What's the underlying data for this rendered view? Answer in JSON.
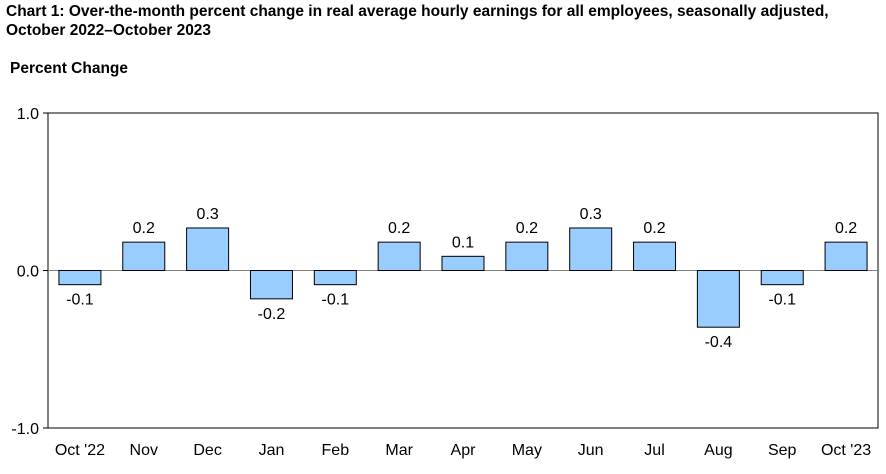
{
  "chart_data": {
    "type": "bar",
    "title": "Chart 1: Over-the-month percent change in real average hourly earnings for all employees, seasonally adjusted, October 2022–October 2023",
    "ylabel": "Percent Change",
    "xlabel": "",
    "categories": [
      "Oct '22",
      "Nov",
      "Dec",
      "Jan",
      "Feb",
      "Mar",
      "Apr",
      "May",
      "Jun",
      "Jul",
      "Aug",
      "Sep",
      "Oct '23"
    ],
    "values": [
      -0.09,
      0.18,
      0.27,
      -0.18,
      -0.09,
      0.18,
      0.09,
      0.18,
      0.27,
      0.18,
      -0.36,
      -0.09,
      0.18
    ],
    "data_labels": [
      "-0.1",
      "0.2",
      "0.3",
      "-0.2",
      "-0.1",
      "0.2",
      "0.1",
      "0.2",
      "0.3",
      "0.2",
      "-0.4",
      "-0.1",
      "0.2"
    ],
    "ylim": [
      -1.0,
      1.0
    ],
    "yticks": [
      1.0,
      0.0,
      -1.0
    ],
    "ytick_labels": [
      "1.0",
      "0.0",
      "-1.0"
    ],
    "grid": false,
    "colors": {
      "bar_fill": "#99ccff",
      "bar_stroke": "#000000",
      "zero_line": "#808080"
    }
  }
}
